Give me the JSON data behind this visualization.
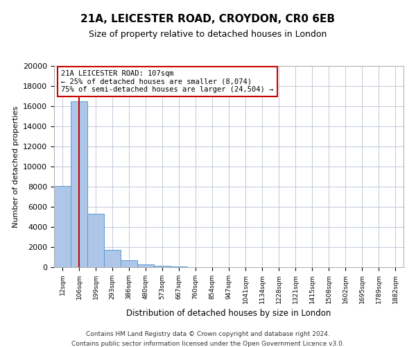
{
  "title": "21A, LEICESTER ROAD, CROYDON, CR0 6EB",
  "subtitle": "Size of property relative to detached houses in London",
  "xlabel": "Distribution of detached houses by size in London",
  "ylabel": "Number of detached properties",
  "bin_labels": [
    "12sqm",
    "106sqm",
    "199sqm",
    "293sqm",
    "386sqm",
    "480sqm",
    "573sqm",
    "667sqm",
    "760sqm",
    "854sqm",
    "947sqm",
    "1041sqm",
    "1134sqm",
    "1228sqm",
    "1321sqm",
    "1415sqm",
    "1508sqm",
    "1602sqm",
    "1695sqm",
    "1789sqm",
    "1882sqm"
  ],
  "bin_values": [
    8074,
    16500,
    5300,
    1750,
    700,
    300,
    150,
    100,
    0,
    0,
    0,
    0,
    0,
    0,
    0,
    0,
    0,
    0,
    0,
    0,
    0
  ],
  "bar_color": "#aec6e8",
  "bar_edge_color": "#5b9bd5",
  "property_label": "21A LEICESTER ROAD: 107sqm",
  "pct_smaller": 25,
  "n_smaller": 8074,
  "pct_larger_semi": 75,
  "n_larger_semi": 24504,
  "vline_color": "#cc0000",
  "ylim": [
    0,
    20000
  ],
  "yticks": [
    0,
    2000,
    4000,
    6000,
    8000,
    10000,
    12000,
    14000,
    16000,
    18000,
    20000
  ],
  "footer_line1": "Contains HM Land Registry data © Crown copyright and database right 2024.",
  "footer_line2": "Contains public sector information licensed under the Open Government Licence v3.0.",
  "background_color": "#ffffff",
  "grid_color": "#c0c8d8"
}
